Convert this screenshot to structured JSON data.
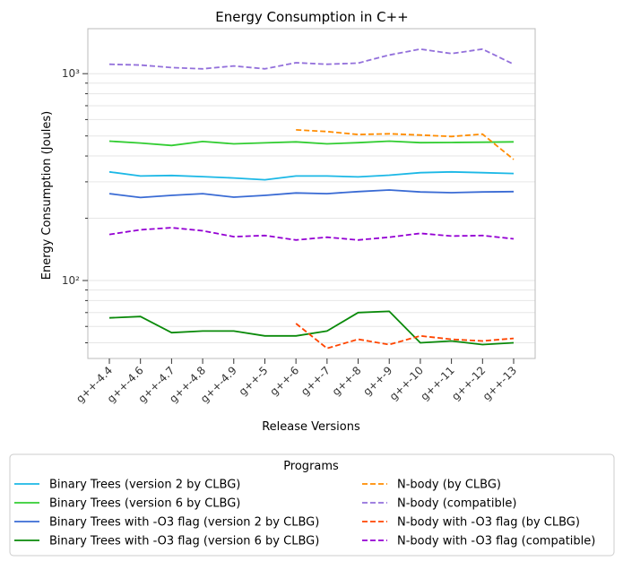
{
  "chart_data": {
    "type": "line",
    "title": "Energy Consumption in C++",
    "xlabel": "Release Versions",
    "ylabel": "Energy Consumption (Joules)",
    "yscale": "log",
    "ylim": [
      42,
      1650
    ],
    "y_ticks": [
      {
        "value": 100,
        "label": "10²"
      },
      {
        "value": 1000,
        "label": "10³"
      }
    ],
    "grid": "horizontal",
    "categories": [
      "g++-4.4",
      "g++-4.6",
      "g++-4.7",
      "g++-4.8",
      "g++-4.9",
      "g++-5",
      "g++-6",
      "g++-7",
      "g++-8",
      "g++-9",
      "g++-10",
      "g++-11",
      "g++-12",
      "g++-13"
    ],
    "legend": {
      "title": "Programs",
      "placement": "bottom"
    },
    "series": [
      {
        "name": "Binary Trees (version 2 by CLBG)",
        "color": "#1cb8e6",
        "dash": "solid",
        "values": [
          335,
          320,
          322,
          318,
          313,
          307,
          320,
          320,
          317,
          323,
          332,
          335,
          332,
          329
        ]
      },
      {
        "name": "Binary Trees (version 6 by CLBG)",
        "color": "#32cd32",
        "dash": "solid",
        "values": [
          472,
          462,
          450,
          470,
          458,
          463,
          468,
          458,
          464,
          472,
          464,
          465,
          466,
          468
        ]
      },
      {
        "name": "Binary Trees with -O3 flag (version 2 by CLBG)",
        "color": "#3a6bd4",
        "dash": "solid",
        "values": [
          263,
          252,
          258,
          263,
          253,
          258,
          265,
          263,
          269,
          274,
          268,
          266,
          268,
          269
        ]
      },
      {
        "name": "Binary Trees with -O3 flag (version 6 by CLBG)",
        "color": "#0a8a0a",
        "dash": "solid",
        "values": [
          66,
          67,
          56,
          57,
          57,
          54,
          54,
          57,
          70,
          71,
          50,
          51,
          49,
          50
        ]
      },
      {
        "name": "N-body (by CLBG)",
        "color": "#ff8c00",
        "dash": "dashed",
        "values": [
          null,
          null,
          null,
          null,
          null,
          null,
          535,
          525,
          508,
          512,
          505,
          497,
          510,
          385
        ]
      },
      {
        "name": "N-body (compatible)",
        "color": "#9370db",
        "dash": "dashed",
        "values": [
          1110,
          1100,
          1070,
          1055,
          1090,
          1055,
          1130,
          1110,
          1125,
          1230,
          1315,
          1250,
          1315,
          1110
        ]
      },
      {
        "name": "N-body with -O3 flag (by CLBG)",
        "color": "#ff4500",
        "dash": "dashed",
        "values": [
          null,
          null,
          null,
          null,
          null,
          null,
          62,
          47,
          52,
          49,
          54,
          52,
          51,
          52.5
        ]
      },
      {
        "name": "N-body with -O3 flag (compatible)",
        "color": "#9400d3",
        "dash": "dashed",
        "values": [
          167,
          176,
          180,
          174,
          163,
          165,
          157,
          162,
          157,
          162,
          169,
          164,
          165,
          159
        ]
      }
    ]
  }
}
